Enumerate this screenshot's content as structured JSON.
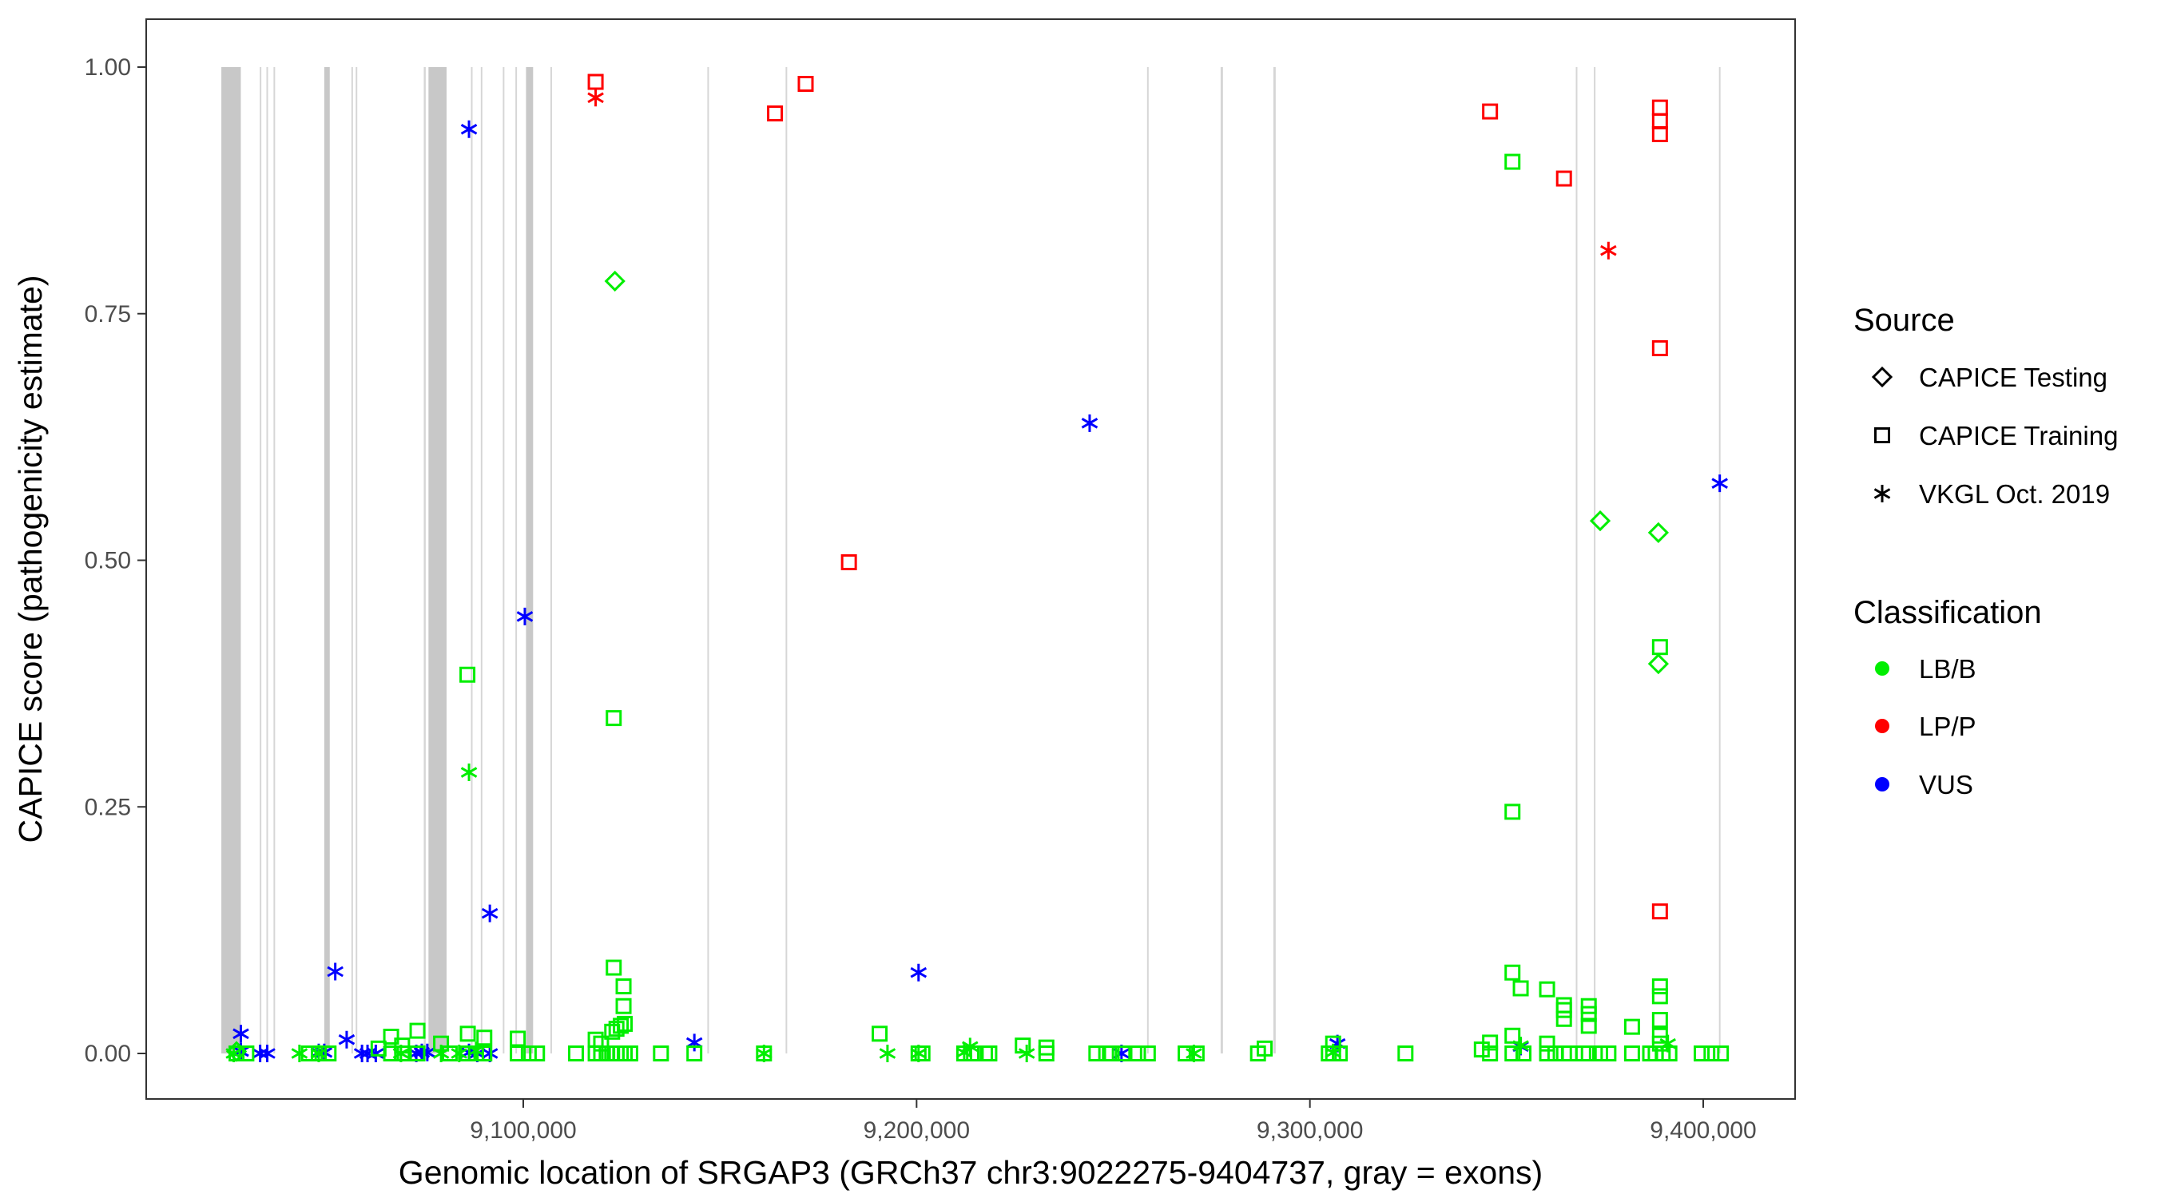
{
  "chart_data": {
    "type": "scatter",
    "xlabel": "Genomic location of SRGAP3 (GRCh37 chr3:9022275-9404737, gray = exons)",
    "ylabel": "CAPICE score (pathogenicity estimate)",
    "xlim": [
      9000000,
      9420000
    ],
    "ylim": [
      -0.05,
      1.05
    ],
    "x_ticks": [
      {
        "value": 9100000,
        "label": "9,100,000"
      },
      {
        "value": 9200000,
        "label": "9,200,000"
      },
      {
        "value": 9300000,
        "label": "9,300,000"
      },
      {
        "value": 9400000,
        "label": "9,400,000"
      }
    ],
    "y_ticks": [
      {
        "value": 0,
        "label": "0.00"
      },
      {
        "value": 0.25,
        "label": "0.25"
      },
      {
        "value": 0.5,
        "label": "0.50"
      },
      {
        "value": 0.75,
        "label": "0.75"
      },
      {
        "value": 1,
        "label": "1.00"
      }
    ],
    "grid": false,
    "legend_placement": "right",
    "legend": {
      "source_title": "Source",
      "sources": [
        {
          "name": "CAPICE Testing",
          "shape": "diamond"
        },
        {
          "name": "CAPICE Training",
          "shape": "square"
        },
        {
          "name": "VKGL Oct. 2019",
          "shape": "asterisk"
        }
      ],
      "classification_title": "Classification",
      "classifications": [
        {
          "name": "LB/B",
          "color": "#00ee00"
        },
        {
          "name": "LP/P",
          "color": "#ff0000"
        },
        {
          "name": "VUS",
          "color": "#0000ff"
        }
      ]
    },
    "exons": [
      [
        9023240,
        9028190
      ],
      [
        9033000,
        9033400
      ],
      [
        9034700,
        9035100
      ],
      [
        9036500,
        9036900
      ],
      [
        9049400,
        9050800
      ],
      [
        9056300,
        9056700
      ],
      [
        9057400,
        9057800
      ],
      [
        9074700,
        9075200
      ],
      [
        9075900,
        9080500
      ],
      [
        9086700,
        9087100
      ],
      [
        9089200,
        9089600
      ],
      [
        9094800,
        9095200
      ],
      [
        9098000,
        9098400
      ],
      [
        9100700,
        9102500
      ],
      [
        9106900,
        9107300
      ],
      [
        9146800,
        9147200
      ],
      [
        9166700,
        9167100
      ],
      [
        9258600,
        9259000
      ],
      [
        9277300,
        9277900
      ],
      [
        9290700,
        9291300
      ],
      [
        9367600,
        9368000
      ],
      [
        9372200,
        9372600
      ],
      [
        9404000,
        9404400
      ]
    ],
    "series": [
      {
        "source": "CAPICE Training",
        "classification": "LP/P",
        "points": [
          [
            9118400,
            0.985
          ],
          [
            9164000,
            0.953
          ],
          [
            9171800,
            0.983
          ],
          [
            9182800,
            0.498
          ],
          [
            9345800,
            0.955
          ],
          [
            9364600,
            0.887
          ],
          [
            9389000,
            0.959
          ],
          [
            9389000,
            0.945
          ],
          [
            9389000,
            0.932
          ],
          [
            9389000,
            0.715
          ],
          [
            9389000,
            0.144
          ]
        ]
      },
      {
        "source": "VKGL Oct. 2019",
        "classification": "LP/P",
        "points": [
          [
            9118400,
            0.969
          ],
          [
            9375900,
            0.814
          ]
        ]
      },
      {
        "source": "VKGL Oct. 2019",
        "classification": "VUS",
        "points": [
          [
            9086200,
            0.937
          ],
          [
            9100400,
            0.443
          ],
          [
            9091500,
            0.142
          ],
          [
            9052200,
            0.083
          ],
          [
            9244000,
            0.639
          ],
          [
            9200500,
            0.082
          ],
          [
            9404200,
            0.578
          ],
          [
            9143500,
            0.011
          ],
          [
            9028200,
            0.02
          ],
          [
            9055100,
            0.014
          ],
          [
            9307000,
            0.01
          ],
          [
            9353600,
            0.007
          ],
          [
            9028200,
            0.002
          ],
          [
            9033100,
            0
          ],
          [
            9034900,
            0
          ],
          [
            9048000,
            0.001
          ],
          [
            9049400,
            0.001
          ],
          [
            9059000,
            0
          ],
          [
            9060400,
            0
          ],
          [
            9062500,
            0
          ],
          [
            9072800,
            0
          ],
          [
            9074200,
            0.001
          ],
          [
            9075600,
            0.001
          ],
          [
            9086200,
            0.001
          ],
          [
            9088300,
            0
          ],
          [
            9091500,
            0
          ],
          [
            9252100,
            0
          ]
        ]
      },
      {
        "source": "CAPICE Testing",
        "classification": "LB/B",
        "points": [
          [
            9123300,
            0.783
          ],
          [
            9373800,
            0.54
          ],
          [
            9388600,
            0.528
          ],
          [
            9388600,
            0.395
          ],
          [
            9027100,
            0.002
          ]
        ]
      },
      {
        "source": "VKGL Oct. 2019",
        "classification": "LB/B",
        "points": [
          [
            9086200,
            0.285
          ],
          [
            9026400,
            0
          ],
          [
            9043100,
            0
          ],
          [
            9048000,
            0
          ],
          [
            9068900,
            0
          ],
          [
            9079100,
            0
          ],
          [
            9083700,
            0
          ],
          [
            9088000,
            0.003
          ],
          [
            9161200,
            0
          ],
          [
            9192600,
            0
          ],
          [
            9200500,
            0
          ],
          [
            9212100,
            0.001
          ],
          [
            9213600,
            0.007
          ],
          [
            9228000,
            0
          ],
          [
            9270500,
            0
          ],
          [
            9305900,
            0.001
          ],
          [
            9353600,
            0.008
          ],
          [
            9391000,
            0.01
          ]
        ]
      },
      {
        "source": "CAPICE Training",
        "classification": "LB/B",
        "points": [
          [
            9351500,
            0.904
          ],
          [
            9085800,
            0.384
          ],
          [
            9123000,
            0.34
          ],
          [
            9351500,
            0.245
          ],
          [
            9389000,
            0.412
          ],
          [
            9123000,
            0.087
          ],
          [
            9125500,
            0.068
          ],
          [
            9125500,
            0.048
          ],
          [
            9351500,
            0.082
          ],
          [
            9353600,
            0.066
          ],
          [
            9360300,
            0.065
          ],
          [
            9364600,
            0.049
          ],
          [
            9364600,
            0.035
          ],
          [
            9364600,
            0.044
          ],
          [
            9370900,
            0.048
          ],
          [
            9370900,
            0.04
          ],
          [
            9370900,
            0.028
          ],
          [
            9381900,
            0.027
          ],
          [
            9389000,
            0.068
          ],
          [
            9389000,
            0.058
          ],
          [
            9389000,
            0.034
          ],
          [
            9389000,
            0.018
          ],
          [
            9389000,
            0.01
          ],
          [
            9190600,
            0.02
          ],
          [
            9073100,
            0.023
          ],
          [
            9066400,
            0.017
          ],
          [
            9098600,
            0.015
          ],
          [
            9085900,
            0.02
          ],
          [
            9090100,
            0.016
          ],
          [
            9069200,
            0.008
          ],
          [
            9118400,
            0.014
          ],
          [
            9119800,
            0.01
          ],
          [
            9122600,
            0.022
          ],
          [
            9123700,
            0.025
          ],
          [
            9124800,
            0.028
          ],
          [
            9125800,
            0.03
          ],
          [
            9351500,
            0.018
          ],
          [
            9345800,
            0.011
          ],
          [
            9360300,
            0.01
          ],
          [
            9305900,
            0.01
          ],
          [
            9227000,
            0.008
          ],
          [
            9233000,
            0.006
          ],
          [
            9027100,
            0
          ],
          [
            9029600,
            0
          ],
          [
            9045500,
            0
          ],
          [
            9048000,
            0
          ],
          [
            9050500,
            0
          ],
          [
            9063200,
            0.005
          ],
          [
            9066400,
            0
          ],
          [
            9069200,
            0
          ],
          [
            9073100,
            0
          ],
          [
            9079100,
            0.01
          ],
          [
            9081300,
            0
          ],
          [
            9085900,
            0
          ],
          [
            9088000,
            0
          ],
          [
            9090100,
            0
          ],
          [
            9098600,
            0
          ],
          [
            9101400,
            0
          ],
          [
            9103500,
            0
          ],
          [
            9113400,
            0
          ],
          [
            9118400,
            0
          ],
          [
            9119800,
            0
          ],
          [
            9121200,
            0
          ],
          [
            9122600,
            0
          ],
          [
            9123700,
            0
          ],
          [
            9124800,
            0
          ],
          [
            9125800,
            0
          ],
          [
            9127200,
            0
          ],
          [
            9135000,
            0
          ],
          [
            9143500,
            0
          ],
          [
            9161200,
            0
          ],
          [
            9200500,
            0
          ],
          [
            9201500,
            0
          ],
          [
            9212100,
            0
          ],
          [
            9214600,
            0
          ],
          [
            9217400,
            0
          ],
          [
            9218500,
            0
          ],
          [
            9233000,
            0
          ],
          [
            9245700,
            0
          ],
          [
            9248200,
            0
          ],
          [
            9249600,
            0
          ],
          [
            9252400,
            0
          ],
          [
            9256300,
            0
          ],
          [
            9258800,
            0
          ],
          [
            9268400,
            0
          ],
          [
            9271200,
            0
          ],
          [
            9286800,
            0
          ],
          [
            9288500,
            0.005
          ],
          [
            9304800,
            0
          ],
          [
            9305900,
            0
          ],
          [
            9307600,
            0
          ],
          [
            9324300,
            0
          ],
          [
            9343700,
            0.004
          ],
          [
            9345800,
            0
          ],
          [
            9351500,
            0
          ],
          [
            9354300,
            0
          ],
          [
            9360300,
            0
          ],
          [
            9362400,
            0
          ],
          [
            9364600,
            0
          ],
          [
            9366000,
            0
          ],
          [
            9369500,
            0
          ],
          [
            9370900,
            0
          ],
          [
            9373800,
            0
          ],
          [
            9375900,
            0
          ],
          [
            9381900,
            0
          ],
          [
            9386500,
            0
          ],
          [
            9387900,
            0
          ],
          [
            9389700,
            0
          ],
          [
            9391400,
            0
          ],
          [
            9399600,
            0
          ],
          [
            9402100,
            0
          ],
          [
            9404500,
            0
          ]
        ]
      }
    ]
  }
}
